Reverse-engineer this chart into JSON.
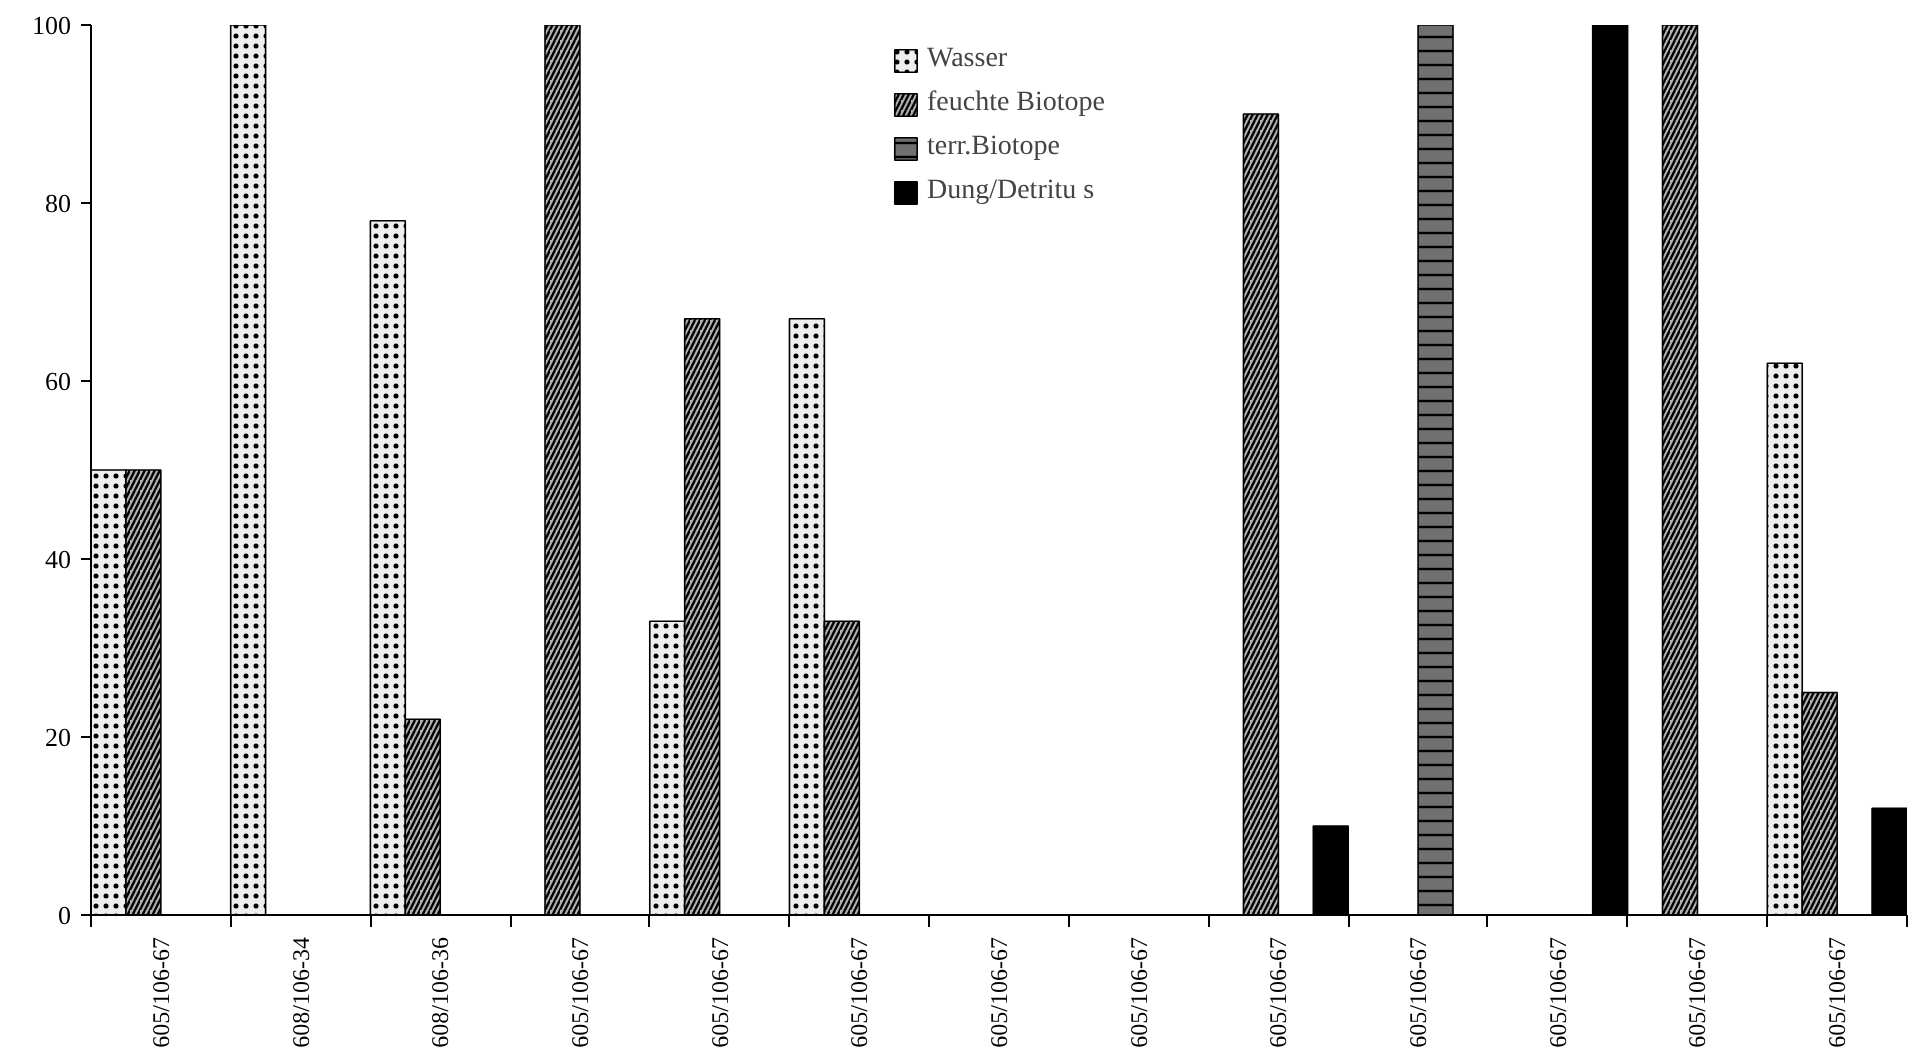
{
  "chart_data": {
    "type": "bar",
    "categories": [
      "605/106-67",
      "608/106-34",
      "608/106-36",
      "605/106-67",
      "605/106-67",
      "605/106-67",
      "605/106-67",
      "605/106-67",
      "605/106-67",
      "605/106-67",
      "605/106-67",
      "605/106-67",
      "605/106-67"
    ],
    "series": [
      {
        "name": "Wasser",
        "color": "#eeeeee",
        "values": [
          50,
          100,
          78,
          null,
          33,
          67,
          null,
          null,
          null,
          null,
          null,
          null,
          62
        ]
      },
      {
        "name": "feuchte Biotope",
        "color": "#b0b0b0",
        "values": [
          50,
          null,
          22,
          100,
          67,
          33,
          null,
          null,
          90,
          null,
          null,
          100,
          25
        ]
      },
      {
        "name": "terr.Biotope",
        "color": "#707070",
        "values": [
          null,
          null,
          null,
          null,
          null,
          null,
          null,
          null,
          null,
          100,
          null,
          null,
          null
        ]
      },
      {
        "name": "Dung/Detritu s",
        "color": "#000000",
        "values": [
          null,
          null,
          null,
          null,
          null,
          null,
          null,
          null,
          10,
          null,
          100,
          null,
          12
        ]
      }
    ],
    "ylim": [
      0,
      100
    ],
    "yticks": [
      0,
      20,
      40,
      60,
      80,
      100
    ],
    "grid": false,
    "legend": "top"
  }
}
